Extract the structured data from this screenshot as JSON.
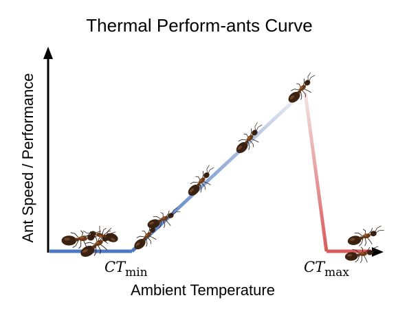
{
  "title": "Thermal Perform-ants Curve",
  "y_axis_label": "Ant Speed / Performance",
  "x_axis_label": "Ambient Temperature",
  "ct_min": {
    "symbol": "CT",
    "subscript": "min"
  },
  "ct_max": {
    "symbol": "CT",
    "subscript": "max"
  },
  "colors": {
    "cold_blue": "#4a78c2",
    "warm_red": "#c81e1e",
    "axis": "#000000"
  },
  "icons": [
    "ant-icon"
  ]
}
